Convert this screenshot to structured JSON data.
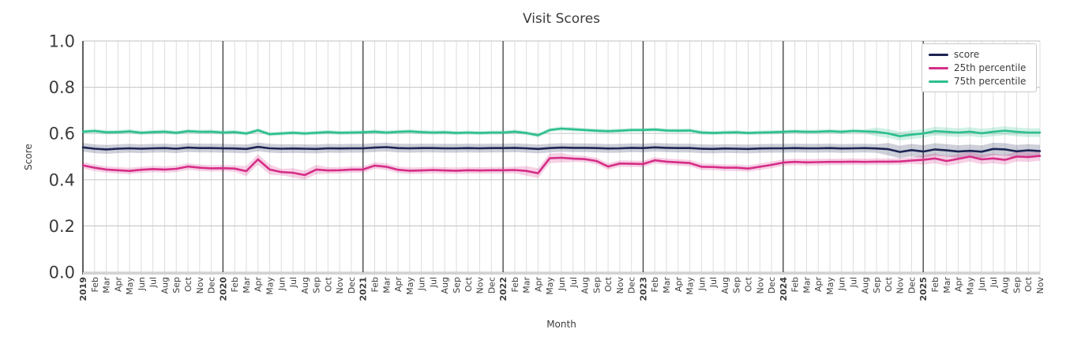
{
  "title": "Visit Scores",
  "xlabel": "Month",
  "ylabel": "Score",
  "legend": {
    "position": "upper right",
    "items": [
      {
        "label": "score",
        "color": "#1d2554"
      },
      {
        "label": "25th percentile",
        "color": "#d62d87"
      },
      {
        "label": "75th percentile",
        "color": "#2dbf8d"
      }
    ]
  },
  "colors": {
    "grid_minor": "#dddddd",
    "grid_major": "#cccccc",
    "year_separator": "#3c3c3c",
    "axis_spine_left": "#3c3c3c",
    "axis_spine_bottom": "#d3d3d3",
    "text": "#3c3c3c",
    "background": "#ffffff"
  },
  "chart_data": {
    "type": "line",
    "title": "Visit Scores",
    "xlabel": "Month",
    "ylabel": "Score",
    "ylim": [
      0.0,
      1.0
    ],
    "yticks": [
      0.0,
      0.2,
      0.4,
      0.6,
      0.8,
      1.0
    ],
    "grid": true,
    "legend_position": "upper right",
    "x_tick_labels": [
      "2019",
      "Feb",
      "Mar",
      "Apr",
      "May",
      "Jun",
      "Jul",
      "Aug",
      "Sep",
      "Oct",
      "Nov",
      "Dec",
      "2020",
      "Feb",
      "Mar",
      "Apr",
      "May",
      "Jun",
      "Jul",
      "Aug",
      "Sep",
      "Oct",
      "Nov",
      "Dec",
      "2021",
      "Feb",
      "Mar",
      "Apr",
      "May",
      "Jun",
      "Jul",
      "Aug",
      "Sep",
      "Oct",
      "Nov",
      "Dec",
      "2022",
      "Feb",
      "Mar",
      "Apr",
      "May",
      "Jun",
      "Jul",
      "Aug",
      "Sep",
      "Oct",
      "Nov",
      "Dec",
      "2023",
      "Feb",
      "Mar",
      "Apr",
      "May",
      "Jun",
      "Jul",
      "Aug",
      "Sep",
      "Oct",
      "Nov",
      "Dec",
      "2024",
      "Feb",
      "Mar",
      "Apr",
      "May",
      "Jun",
      "Jul",
      "Aug",
      "Sep",
      "Oct",
      "Nov",
      "Dec",
      "2025",
      "Feb",
      "Mar",
      "Apr",
      "May",
      "Jun",
      "Jul",
      "Aug",
      "Sep",
      "Oct",
      "Nov"
    ],
    "year_start_indices": [
      0,
      12,
      24,
      36,
      48,
      60,
      72
    ],
    "series": [
      {
        "name": "score",
        "color": "#1d2554",
        "values": [
          0.54,
          0.534,
          0.531,
          0.534,
          0.536,
          0.534,
          0.536,
          0.537,
          0.534,
          0.539,
          0.537,
          0.537,
          0.536,
          0.535,
          0.533,
          0.542,
          0.536,
          0.534,
          0.535,
          0.534,
          0.533,
          0.536,
          0.535,
          0.536,
          0.536,
          0.539,
          0.541,
          0.537,
          0.536,
          0.537,
          0.537,
          0.536,
          0.536,
          0.537,
          0.536,
          0.537,
          0.537,
          0.538,
          0.536,
          0.533,
          0.537,
          0.539,
          0.538,
          0.538,
          0.537,
          0.535,
          0.536,
          0.538,
          0.537,
          0.54,
          0.538,
          0.537,
          0.537,
          0.534,
          0.533,
          0.535,
          0.534,
          0.533,
          0.535,
          0.536,
          0.536,
          0.537,
          0.536,
          0.536,
          0.537,
          0.535,
          0.536,
          0.537,
          0.535,
          0.532,
          0.52,
          0.528,
          0.522,
          0.531,
          0.527,
          0.522,
          0.525,
          0.521,
          0.533,
          0.531,
          0.523,
          0.527,
          0.524
        ],
        "band": {
          "base": 0.019,
          "wide": [
            {
              "from": 69,
              "to": 82,
              "halfwidth": 0.027
            }
          ]
        }
      },
      {
        "name": "25th percentile",
        "color": "#d62d87",
        "values": [
          0.462,
          0.452,
          0.444,
          0.441,
          0.438,
          0.443,
          0.446,
          0.444,
          0.447,
          0.457,
          0.452,
          0.449,
          0.45,
          0.448,
          0.437,
          0.488,
          0.444,
          0.433,
          0.43,
          0.42,
          0.444,
          0.44,
          0.441,
          0.444,
          0.444,
          0.461,
          0.456,
          0.443,
          0.439,
          0.44,
          0.442,
          0.44,
          0.439,
          0.441,
          0.44,
          0.441,
          0.441,
          0.442,
          0.438,
          0.428,
          0.493,
          0.495,
          0.491,
          0.489,
          0.481,
          0.457,
          0.47,
          0.469,
          0.468,
          0.484,
          0.478,
          0.475,
          0.472,
          0.456,
          0.455,
          0.452,
          0.452,
          0.448,
          0.456,
          0.464,
          0.474,
          0.477,
          0.475,
          0.476,
          0.477,
          0.477,
          0.478,
          0.477,
          0.478,
          0.478,
          0.479,
          0.483,
          0.486,
          0.492,
          0.481,
          0.49,
          0.5,
          0.488,
          0.492,
          0.486,
          0.5,
          0.498,
          0.503
        ],
        "band": {
          "base": 0.014,
          "wide": [
            {
              "from": 14,
              "to": 16,
              "halfwidth": 0.022
            },
            {
              "from": 18,
              "to": 20,
              "halfwidth": 0.02
            },
            {
              "from": 38,
              "to": 41,
              "halfwidth": 0.021
            },
            {
              "from": 72,
              "to": 82,
              "halfwidth": 0.021
            }
          ]
        }
      },
      {
        "name": "75th percentile",
        "color": "#2dbf8d",
        "values": [
          0.608,
          0.611,
          0.605,
          0.606,
          0.609,
          0.603,
          0.606,
          0.608,
          0.603,
          0.61,
          0.607,
          0.608,
          0.604,
          0.606,
          0.6,
          0.614,
          0.597,
          0.6,
          0.603,
          0.6,
          0.603,
          0.606,
          0.603,
          0.604,
          0.605,
          0.608,
          0.604,
          0.607,
          0.609,
          0.606,
          0.604,
          0.605,
          0.602,
          0.604,
          0.602,
          0.604,
          0.604,
          0.608,
          0.602,
          0.592,
          0.615,
          0.621,
          0.618,
          0.615,
          0.612,
          0.61,
          0.612,
          0.615,
          0.615,
          0.617,
          0.613,
          0.612,
          0.613,
          0.604,
          0.602,
          0.604,
          0.605,
          0.602,
          0.604,
          0.605,
          0.607,
          0.609,
          0.607,
          0.608,
          0.61,
          0.607,
          0.611,
          0.609,
          0.607,
          0.6,
          0.588,
          0.595,
          0.6,
          0.61,
          0.607,
          0.604,
          0.608,
          0.601,
          0.607,
          0.612,
          0.607,
          0.604,
          0.604
        ],
        "band": {
          "base": 0.009,
          "wide": [
            {
              "from": 68,
              "to": 82,
              "halfwidth": 0.019
            }
          ]
        }
      }
    ]
  }
}
